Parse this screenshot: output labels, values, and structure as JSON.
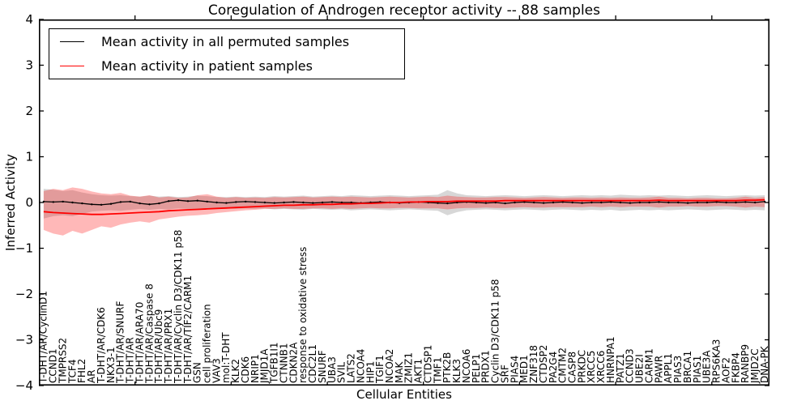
{
  "figure": {
    "title": "Coregulation of Androgen receptor activity -- 88 samples",
    "xlabel": "Cellular Entities",
    "ylabel": "Inferred Activity"
  },
  "legend": {
    "entries": [
      {
        "label": "Mean activity in all permuted samples",
        "color": "#000000"
      },
      {
        "label": "Mean activity in patient samples",
        "color": "#ff0000"
      }
    ]
  },
  "chart_data": {
    "type": "line",
    "title": "Coregulation of Androgen receptor activity -- 88 samples",
    "xlabel": "Cellular Entities",
    "ylabel": "Inferred Activity",
    "ylim": [
      -4,
      4
    ],
    "grid": false,
    "legend_position": "upper left",
    "yticks": [
      {
        "value": 4,
        "label": "4"
      },
      {
        "value": 3,
        "label": "3"
      },
      {
        "value": 2,
        "label": "2"
      },
      {
        "value": 1,
        "label": "1"
      },
      {
        "value": 0,
        "label": "0"
      },
      {
        "value": -1,
        "label": "−1"
      },
      {
        "value": -2,
        "label": "−2"
      },
      {
        "value": -3,
        "label": "−3"
      },
      {
        "value": -4,
        "label": "−4"
      }
    ],
    "top_tick_positions": [
      10,
      20,
      30,
      40,
      50,
      60,
      70
    ],
    "categories": [
      "T-DHT/AR/CyclinD1",
      "CCND1",
      "TMPRSS2",
      "TCF4",
      "FHL2",
      "AR",
      "T-DHT/AR/CDK6",
      "NKX3-1",
      "T-DHT/AR/SNURF",
      "T-DHT/AR",
      "T-DHT/AR/ARA70",
      "T-DHT/AR/Caspase 8",
      "T-DHT/AR/Ubc9",
      "T-DHT/AR/PRX1",
      "T-DHT/AR/Cyclin D3/CDK11 p58",
      "T-DHT/AR/TIF2/CARM1",
      "GSN",
      "cell proliferation",
      "VAV3",
      "mol:T-DHT",
      "KLK2",
      "CDK6",
      "NRIP1",
      "JMJD1A",
      "TGFB1I1",
      "CTNNB1",
      "CDKN2A",
      "response to oxidative stress",
      "CDC2L1",
      "SNURF",
      "UBA3",
      "SVIL",
      "LATS2",
      "NCOA4",
      "HIP1",
      "TGIF1",
      "NCOA2",
      "MAK",
      "ZMIZ1",
      "AKT1",
      "CTDSP1",
      "TMF1",
      "PTK2B",
      "KLK3",
      "NCOA6",
      "PELP1",
      "PRDX1",
      "Cyclin D3/CDK11 p58",
      "SRF",
      "PIAS4",
      "MED1",
      "ZNF318",
      "CTDSP2",
      "PA2G4",
      "CMTM2",
      "CASP8",
      "PRKDC",
      "XRCC5",
      "XRCC6",
      "HNRNPA1",
      "PATZ1",
      "CCND3",
      "UBE2I",
      "CARM1",
      "PAWR",
      "APPL1",
      "PIAS3",
      "BRCA1",
      "PIAS1",
      "UBE3A",
      "RPS6KA3",
      "AOF2",
      "FKBP4",
      "RANBP9",
      "JMJD2C",
      "DNA-PK"
    ],
    "series": [
      {
        "name": "Mean activity in all permuted samples",
        "color": "#000000",
        "marker": "dot",
        "values": [
          0.02,
          0.01,
          0.02,
          0.0,
          -0.02,
          -0.04,
          -0.05,
          -0.03,
          0.01,
          0.02,
          -0.02,
          -0.04,
          -0.02,
          0.03,
          0.05,
          0.03,
          0.04,
          0.02,
          0.0,
          -0.01,
          0.01,
          0.02,
          0.01,
          0.0,
          -0.01,
          0.0,
          0.01,
          0.0,
          -0.01,
          0.0,
          0.01,
          0.0,
          0.0,
          -0.01,
          0.0,
          0.01,
          0.0,
          -0.01,
          0.0,
          0.01,
          0.0,
          -0.01,
          -0.02,
          0.0,
          0.01,
          0.0,
          -0.01,
          0.0,
          -0.02,
          0.0,
          0.01,
          0.0,
          -0.01,
          0.0,
          0.01,
          0.0,
          -0.01,
          0.0,
          0.0,
          0.01,
          0.0,
          -0.01,
          0.0,
          0.0,
          0.01,
          0.0,
          0.0,
          -0.01,
          0.0,
          0.0,
          0.01,
          0.0,
          0.0,
          0.01,
          0.0,
          0.02
        ]
      },
      {
        "name": "Mean activity in patient samples",
        "color": "#ff0000",
        "marker": null,
        "values": [
          -0.2,
          -0.22,
          -0.23,
          -0.24,
          -0.25,
          -0.26,
          -0.26,
          -0.25,
          -0.24,
          -0.23,
          -0.22,
          -0.21,
          -0.2,
          -0.18,
          -0.17,
          -0.16,
          -0.15,
          -0.14,
          -0.13,
          -0.12,
          -0.11,
          -0.1,
          -0.09,
          -0.08,
          -0.07,
          -0.06,
          -0.06,
          -0.05,
          -0.05,
          -0.04,
          -0.04,
          -0.03,
          -0.03,
          -0.02,
          -0.02,
          -0.01,
          0.0,
          0.0,
          0.01,
          0.01,
          0.02,
          0.02,
          0.02,
          0.03,
          0.03,
          0.03,
          0.03,
          0.03,
          0.04,
          0.04,
          0.04,
          0.04,
          0.04,
          0.04,
          0.04,
          0.04,
          0.04,
          0.04,
          0.04,
          0.04,
          0.04,
          0.04,
          0.04,
          0.04,
          0.05,
          0.04,
          0.04,
          0.04,
          0.04,
          0.04,
          0.04,
          0.04,
          0.04,
          0.05,
          0.05,
          0.06
        ]
      }
    ],
    "bands": [
      {
        "name": "permuted-samples-range",
        "color": "rgba(140,140,140,0.35)",
        "upper": [
          0.3,
          0.28,
          0.25,
          0.27,
          0.22,
          0.18,
          0.16,
          0.15,
          0.16,
          0.14,
          0.13,
          0.15,
          0.13,
          0.14,
          0.12,
          0.13,
          0.15,
          0.14,
          0.12,
          0.12,
          0.13,
          0.12,
          0.13,
          0.12,
          0.14,
          0.13,
          0.14,
          0.15,
          0.13,
          0.14,
          0.15,
          0.14,
          0.16,
          0.15,
          0.14,
          0.15,
          0.16,
          0.15,
          0.14,
          0.15,
          0.16,
          0.17,
          0.27,
          0.2,
          0.16,
          0.15,
          0.14,
          0.15,
          0.16,
          0.15,
          0.14,
          0.15,
          0.16,
          0.15,
          0.14,
          0.15,
          0.16,
          0.15,
          0.16,
          0.15,
          0.17,
          0.16,
          0.15,
          0.16,
          0.15,
          0.16,
          0.15,
          0.14,
          0.15,
          0.16,
          0.15,
          0.14,
          0.15,
          0.16,
          0.15,
          0.16
        ],
        "lower": [
          -0.35,
          -0.3,
          -0.28,
          -0.3,
          -0.25,
          -0.2,
          -0.18,
          -0.17,
          -0.18,
          -0.16,
          -0.14,
          -0.16,
          -0.14,
          -0.15,
          -0.13,
          -0.14,
          -0.16,
          -0.15,
          -0.13,
          -0.13,
          -0.14,
          -0.13,
          -0.14,
          -0.13,
          -0.15,
          -0.14,
          -0.15,
          -0.16,
          -0.14,
          -0.15,
          -0.16,
          -0.15,
          -0.17,
          -0.16,
          -0.15,
          -0.16,
          -0.17,
          -0.16,
          -0.15,
          -0.16,
          -0.17,
          -0.18,
          -0.28,
          -0.21,
          -0.17,
          -0.16,
          -0.15,
          -0.16,
          -0.17,
          -0.16,
          -0.15,
          -0.16,
          -0.17,
          -0.16,
          -0.15,
          -0.16,
          -0.17,
          -0.16,
          -0.17,
          -0.16,
          -0.18,
          -0.17,
          -0.16,
          -0.17,
          -0.16,
          -0.17,
          -0.16,
          -0.15,
          -0.16,
          -0.17,
          -0.16,
          -0.15,
          -0.16,
          -0.17,
          -0.16,
          -0.17
        ]
      },
      {
        "name": "patient-samples-range",
        "color": "rgba(255,0,0,0.28)",
        "upper": [
          0.25,
          0.3,
          0.27,
          0.33,
          0.3,
          0.24,
          0.2,
          0.18,
          0.21,
          0.15,
          0.13,
          0.16,
          0.11,
          0.13,
          0.1,
          0.11,
          0.16,
          0.18,
          0.13,
          0.1,
          0.12,
          0.1,
          0.11,
          0.1,
          0.12,
          0.11,
          0.12,
          0.13,
          0.11,
          0.12,
          0.13,
          0.12,
          0.13,
          0.12,
          0.11,
          0.12,
          0.13,
          0.12,
          0.11,
          0.12,
          0.13,
          0.12,
          0.15,
          0.13,
          0.12,
          0.11,
          0.11,
          0.12,
          0.12,
          0.11,
          0.1,
          0.11,
          0.12,
          0.11,
          0.1,
          0.11,
          0.11,
          0.1,
          0.11,
          0.1,
          0.11,
          0.1,
          0.1,
          0.11,
          0.13,
          0.1,
          0.1,
          0.09,
          0.1,
          0.1,
          0.09,
          0.09,
          0.1,
          0.13,
          0.1,
          0.12
        ],
        "lower": [
          -0.6,
          -0.68,
          -0.72,
          -0.62,
          -0.68,
          -0.6,
          -0.52,
          -0.55,
          -0.48,
          -0.44,
          -0.41,
          -0.44,
          -0.37,
          -0.34,
          -0.31,
          -0.29,
          -0.28,
          -0.26,
          -0.23,
          -0.21,
          -0.19,
          -0.17,
          -0.16,
          -0.14,
          -0.14,
          -0.13,
          -0.14,
          -0.14,
          -0.13,
          -0.13,
          -0.14,
          -0.13,
          -0.14,
          -0.13,
          -0.12,
          -0.13,
          -0.13,
          -0.12,
          -0.12,
          -0.13,
          -0.13,
          -0.13,
          -0.15,
          -0.13,
          -0.12,
          -0.12,
          -0.11,
          -0.12,
          -0.12,
          -0.11,
          -0.1,
          -0.11,
          -0.11,
          -0.1,
          -0.1,
          -0.1,
          -0.1,
          -0.09,
          -0.1,
          -0.09,
          -0.1,
          -0.09,
          -0.09,
          -0.09,
          -0.11,
          -0.09,
          -0.09,
          -0.08,
          -0.09,
          -0.09,
          -0.08,
          -0.08,
          -0.09,
          -0.11,
          -0.09,
          -0.1
        ]
      }
    ]
  }
}
